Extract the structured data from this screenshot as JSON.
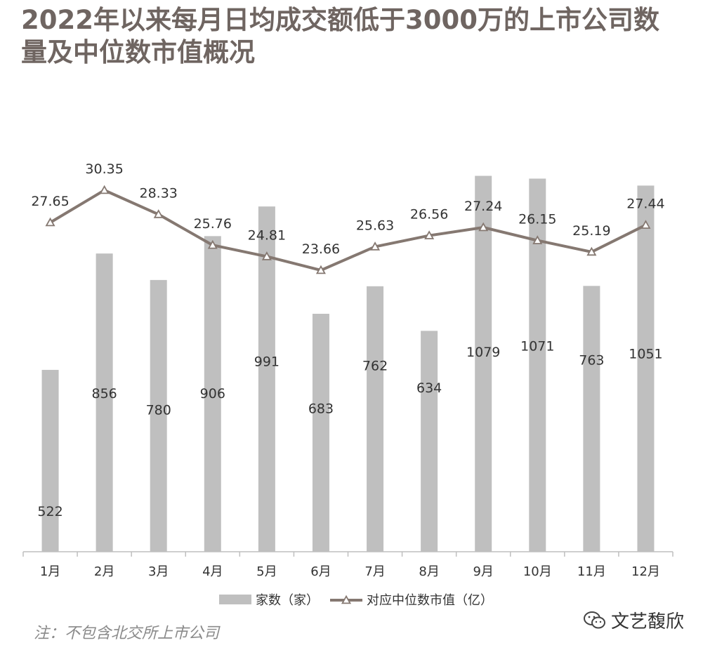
{
  "title": "2022年以来每月日均成交额低于3000万的上市公司数量及中位数市值概况",
  "note": "注：不包含北交所上市公司",
  "watermark": "文艺馥欣",
  "colors": {
    "bar": "#bfbfbf",
    "line": "#857871",
    "axis": "#bfbfbf",
    "label": "#333333"
  },
  "chart_data": {
    "type": "bar",
    "categories": [
      "1月",
      "2月",
      "3月",
      "4月",
      "5月",
      "6月",
      "7月",
      "8月",
      "9月",
      "10月",
      "11月",
      "12月"
    ],
    "series": [
      {
        "name": "家数（家）",
        "type": "bar",
        "values": [
          522,
          856,
          780,
          906,
          991,
          683,
          762,
          634,
          1079,
          1071,
          763,
          1051
        ]
      },
      {
        "name": "对应中位数市值（亿）",
        "type": "line",
        "marker": "triangle",
        "values": [
          27.65,
          30.35,
          28.33,
          25.76,
          24.81,
          23.66,
          25.63,
          26.56,
          27.24,
          26.15,
          25.19,
          27.44
        ]
      }
    ],
    "bar_axis_range": [
      0,
      1100
    ],
    "line_axis_range": [
      16,
      31.5
    ],
    "legend_position": "bottom",
    "grid": false
  }
}
